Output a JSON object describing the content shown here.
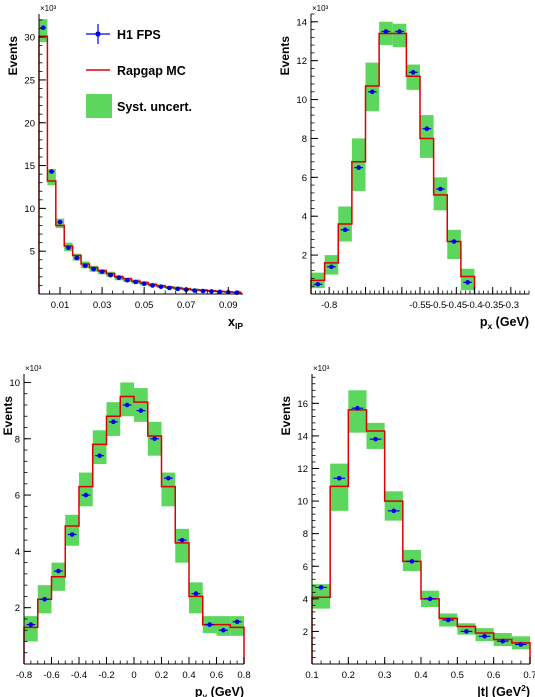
{
  "legend": {
    "data_label": "H1 FPS",
    "mc_label": "Rapgap MC",
    "syst_label": "Syst. uncert."
  },
  "colors": {
    "data": "#0000ee",
    "mc": "#dd0000",
    "syst": "#5cd65c",
    "axis": "#000000"
  },
  "chart_data": [
    {
      "type": "histogram",
      "ylabel": "Events",
      "y_multiplier": "×10³",
      "xlabel": "x",
      "xlabel_sub": "IP",
      "xlim": [
        0.0,
        0.097
      ],
      "ylim": [
        0,
        32.7
      ],
      "xticks": [
        0.01,
        0.03,
        0.05,
        0.07,
        0.09
      ],
      "xtick_labels": [
        "0.01",
        "0.03",
        "0.05",
        "0.07",
        "0.09"
      ],
      "yticks": [
        5,
        10,
        15,
        20,
        25,
        30
      ],
      "ytick_labels": [
        "5",
        "10",
        "15",
        "20",
        "25",
        "30"
      ],
      "edges": [
        0.0,
        0.004,
        0.008,
        0.012,
        0.016,
        0.02,
        0.024,
        0.028,
        0.032,
        0.036,
        0.04,
        0.044,
        0.048,
        0.052,
        0.056,
        0.06,
        0.064,
        0.068,
        0.072,
        0.076,
        0.08,
        0.084,
        0.088,
        0.092,
        0.096
      ],
      "mc": [
        30.1,
        13.2,
        8.0,
        5.6,
        4.5,
        3.5,
        3.1,
        2.7,
        2.4,
        2.0,
        1.8,
        1.5,
        1.3,
        1.1,
        0.95,
        0.8,
        0.7,
        0.6,
        0.5,
        0.45,
        0.38,
        0.3,
        0.25,
        0.2
      ],
      "data": [
        31.1,
        14.3,
        8.4,
        5.4,
        4.2,
        3.3,
        2.9,
        2.6,
        2.2,
        1.9,
        1.6,
        1.4,
        1.2,
        1.0,
        0.85,
        0.7,
        0.6,
        0.5,
        0.4,
        0.35,
        0.3,
        0.25,
        0.2,
        0.15
      ],
      "syst_low": [
        29.4,
        12.7,
        7.7,
        5.0,
        3.9,
        3.0,
        2.6,
        2.3,
        2.0,
        1.6,
        1.4,
        1.2,
        1.0,
        0.85,
        0.7,
        0.58,
        0.48,
        0.4,
        0.32,
        0.27,
        0.22,
        0.18,
        0.14,
        0.1
      ],
      "syst_high": [
        32.1,
        14.6,
        8.8,
        6.0,
        4.7,
        3.8,
        3.3,
        2.9,
        2.6,
        2.2,
        1.9,
        1.7,
        1.5,
        1.3,
        1.1,
        0.95,
        0.85,
        0.75,
        0.65,
        0.58,
        0.5,
        0.42,
        0.36,
        0.3
      ]
    },
    {
      "type": "histogram",
      "ylabel": "Events",
      "y_multiplier": "×10³",
      "xlabel": "p",
      "xlabel_sub": "x",
      "xlabel_unit": " (GeV)",
      "xlim": [
        -0.85,
        -0.25
      ],
      "ylim": [
        0,
        14.4
      ],
      "xticks": [
        -0.8,
        -0.75,
        -0.7,
        -0.65,
        -0.6,
        -0.55,
        -0.5,
        -0.45,
        -0.4,
        -0.35,
        -0.3
      ],
      "xtick_labels": [
        "-0.8",
        "",
        "",
        "",
        "",
        "-0.55",
        "-0.5",
        "-0.45",
        "-0.4",
        "-0.35",
        "-0.3"
      ],
      "yticks": [
        2,
        4,
        6,
        8,
        10,
        12,
        14
      ],
      "ytick_labels": [
        "2",
        "4",
        "6",
        "8",
        "10",
        "12",
        "14"
      ],
      "edges": [
        -0.85,
        -0.8125,
        -0.775,
        -0.7375,
        -0.7,
        -0.6625,
        -0.625,
        -0.5875,
        -0.55,
        -0.5125,
        -0.475,
        -0.4375,
        -0.4,
        -0.3625,
        -0.325,
        -0.2875,
        -0.25
      ],
      "mc": [
        0.7,
        1.6,
        3.6,
        6.8,
        10.7,
        13.4,
        13.4,
        11.2,
        8.0,
        5.1,
        2.7,
        0.9
      ],
      "data": [
        0.5,
        1.4,
        3.3,
        6.5,
        10.4,
        13.5,
        13.5,
        11.4,
        8.5,
        5.4,
        2.7,
        0.6
      ],
      "syst_low": [
        0.3,
        1.0,
        2.7,
        5.3,
        9.4,
        12.8,
        12.7,
        10.5,
        7.0,
        4.3,
        1.8,
        0.2
      ],
      "syst_high": [
        1.1,
        2.0,
        4.5,
        8.0,
        11.9,
        14.0,
        13.9,
        11.8,
        9.2,
        6.0,
        3.3,
        1.3
      ]
    },
    {
      "type": "histogram",
      "ylabel": "Events",
      "y_multiplier": "×10³",
      "xlabel": "p",
      "xlabel_sub": "y",
      "xlabel_unit": " (GeV)",
      "xlim": [
        -0.8,
        0.8
      ],
      "ylim": [
        0,
        10.3
      ],
      "xticks": [
        -0.8,
        -0.6,
        -0.4,
        -0.2,
        0,
        0.2,
        0.4,
        0.6,
        0.8
      ],
      "xtick_labels": [
        "-0.8",
        "-0.6",
        "-0.4",
        "-0.2",
        "0",
        "0.2",
        "0.4",
        "0.6",
        "0.8"
      ],
      "yticks": [
        2,
        4,
        6,
        8,
        10
      ],
      "ytick_labels": [
        "2",
        "4",
        "6",
        "8",
        "10"
      ],
      "edges": [
        -0.8,
        -0.7,
        -0.6,
        -0.5,
        -0.4,
        -0.3,
        -0.2,
        -0.1,
        0.0,
        0.1,
        0.2,
        0.3,
        0.4,
        0.5,
        0.6,
        0.7,
        0.8
      ],
      "mc": [
        1.3,
        2.3,
        3.1,
        4.9,
        6.3,
        7.8,
        8.8,
        9.5,
        9.3,
        8.1,
        6.3,
        4.3,
        2.4,
        1.4,
        1.4,
        1.3
      ],
      "data": [
        1.4,
        2.3,
        3.3,
        4.6,
        6.0,
        7.4,
        8.6,
        9.2,
        9.0,
        8.0,
        6.6,
        4.4,
        2.5,
        1.4,
        1.2,
        1.5
      ],
      "syst_low": [
        0.8,
        1.8,
        2.6,
        4.2,
        5.6,
        7.1,
        8.1,
        8.8,
        8.6,
        7.4,
        5.6,
        3.6,
        1.8,
        1.1,
        1.0,
        1.0
      ],
      "syst_high": [
        1.7,
        2.8,
        3.6,
        5.3,
        6.8,
        8.3,
        9.3,
        10.0,
        9.8,
        8.6,
        6.8,
        4.8,
        2.9,
        1.7,
        1.7,
        1.7
      ]
    },
    {
      "type": "histogram",
      "ylabel": "Events",
      "y_multiplier": "×10³",
      "xlabel": "|t| (GeV",
      "xlabel_sup": "2",
      "xlabel_unit": ")",
      "xlim": [
        0.1,
        0.7
      ],
      "ylim": [
        0,
        17.8
      ],
      "xticks": [
        0.1,
        0.2,
        0.3,
        0.4,
        0.5,
        0.6,
        0.7
      ],
      "xtick_labels": [
        "0.1",
        "0.2",
        "0.3",
        "0.4",
        "0.5",
        "0.6",
        "0.7"
      ],
      "yticks": [
        2,
        4,
        6,
        8,
        10,
        12,
        14,
        16
      ],
      "ytick_labels": [
        "2",
        "4",
        "6",
        "8",
        "10",
        "12",
        "14",
        "16"
      ],
      "edges": [
        0.1,
        0.15,
        0.2,
        0.25,
        0.3,
        0.35,
        0.4,
        0.45,
        0.5,
        0.55,
        0.6,
        0.65,
        0.7
      ],
      "mc": [
        4.1,
        10.9,
        15.6,
        14.3,
        10.0,
        6.3,
        4.0,
        2.8,
        2.3,
        1.9,
        1.5,
        1.3
      ],
      "data": [
        4.7,
        11.4,
        15.7,
        13.8,
        9.4,
        6.3,
        4.0,
        2.7,
        2.0,
        1.7,
        1.4,
        1.2
      ],
      "syst_low": [
        3.4,
        9.4,
        14.2,
        13.2,
        8.8,
        5.7,
        3.5,
        2.3,
        1.8,
        1.4,
        1.1,
        0.9
      ],
      "syst_high": [
        4.9,
        12.3,
        16.8,
        14.8,
        10.6,
        7.0,
        4.5,
        3.1,
        2.5,
        2.2,
        1.9,
        1.7
      ]
    }
  ]
}
